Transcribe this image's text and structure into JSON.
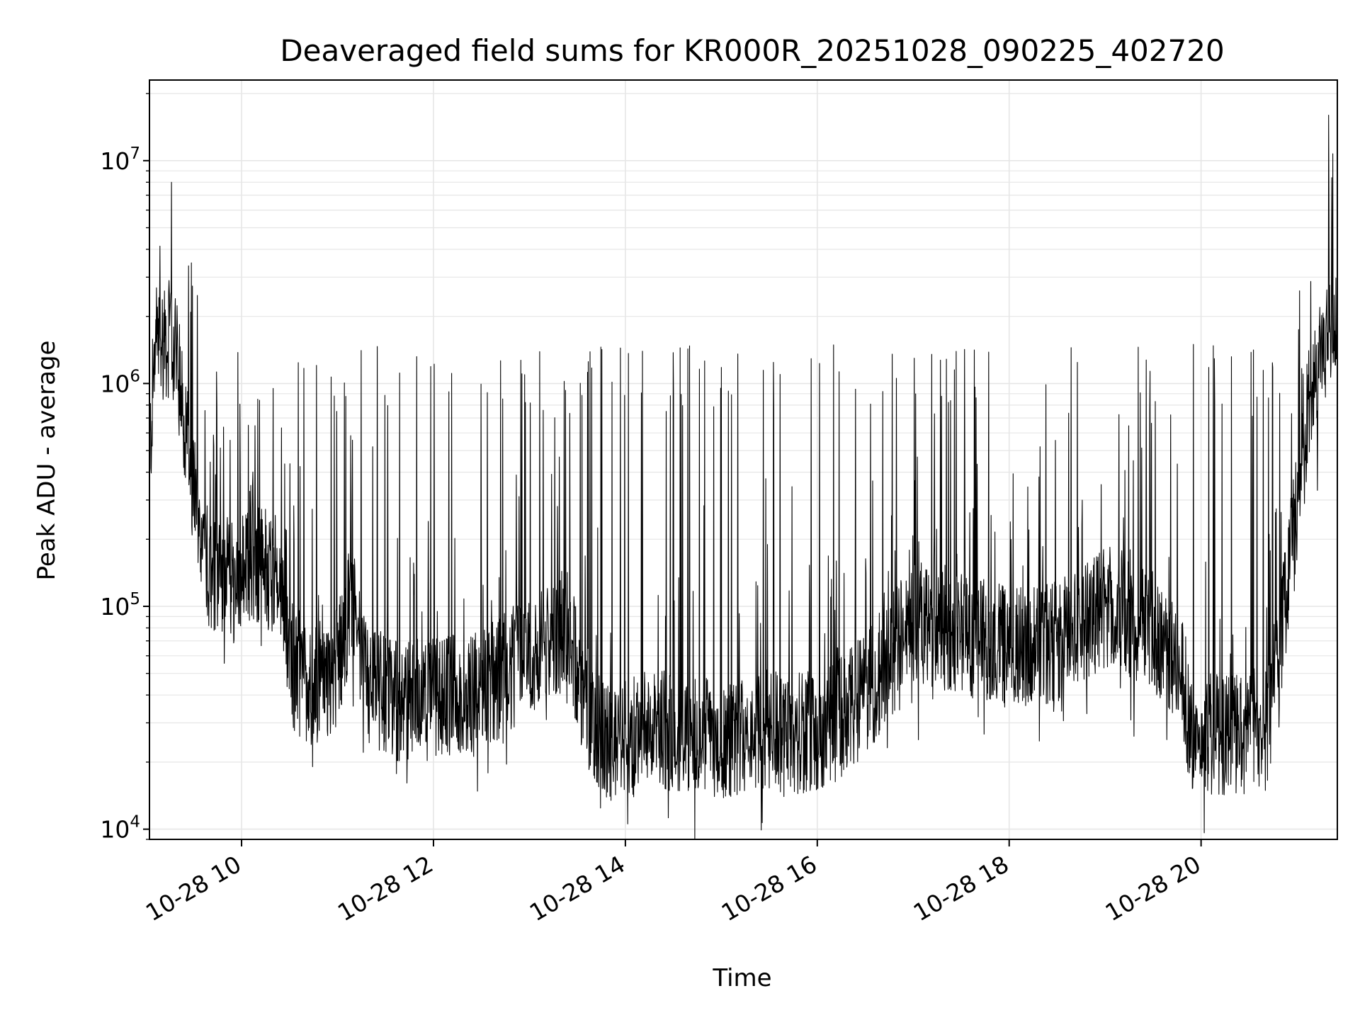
{
  "chart_data": {
    "type": "line",
    "title": "Deaveraged field sums for KR000R_20251028_090225_402720",
    "xlabel": "Time",
    "ylabel": "Peak ADU - average",
    "yscale": "log",
    "ylim": [
      9000,
      23000000
    ],
    "xlim_hours": [
      9.04,
      21.42
    ],
    "x_ticks": [
      {
        "hour": 10,
        "label": "10-28 10"
      },
      {
        "hour": 12,
        "label": "10-28 12"
      },
      {
        "hour": 14,
        "label": "10-28 14"
      },
      {
        "hour": 16,
        "label": "10-28 16"
      },
      {
        "hour": 18,
        "label": "10-28 18"
      },
      {
        "hour": 20,
        "label": "10-28 20"
      }
    ],
    "y_ticks": [
      {
        "value": 10000,
        "base": "10",
        "exp": "4"
      },
      {
        "value": 100000,
        "base": "10",
        "exp": "5"
      },
      {
        "value": 1000000,
        "base": "10",
        "exp": "6"
      },
      {
        "value": 10000000,
        "base": "10",
        "exp": "7"
      }
    ],
    "grid": true,
    "line_color": "#000000",
    "grid_color": "#e6e6e6",
    "series": [
      {
        "name": "field sums",
        "baseline_anchors_hours": [
          [
            9.04,
            450000
          ],
          [
            9.1,
            1500000
          ],
          [
            9.2,
            1600000
          ],
          [
            9.3,
            1500000
          ],
          [
            9.4,
            700000
          ],
          [
            9.5,
            300000
          ],
          [
            9.65,
            150000
          ],
          [
            9.9,
            130000
          ],
          [
            10.2,
            160000
          ],
          [
            10.4,
            130000
          ],
          [
            10.55,
            50000
          ],
          [
            10.8,
            42000
          ],
          [
            11.0,
            55000
          ],
          [
            11.15,
            110000
          ],
          [
            11.3,
            45000
          ],
          [
            11.6,
            38000
          ],
          [
            12.0,
            38000
          ],
          [
            12.5,
            42000
          ],
          [
            13.0,
            60000
          ],
          [
            13.4,
            80000
          ],
          [
            13.6,
            35000
          ],
          [
            13.8,
            25000
          ],
          [
            14.5,
            28000
          ],
          [
            15.0,
            25000
          ],
          [
            15.5,
            28000
          ],
          [
            16.0,
            26000
          ],
          [
            16.5,
            40000
          ],
          [
            17.0,
            85000
          ],
          [
            17.5,
            75000
          ],
          [
            18.0,
            65000
          ],
          [
            18.5,
            70000
          ],
          [
            19.0,
            100000
          ],
          [
            19.5,
            80000
          ],
          [
            19.8,
            50000
          ],
          [
            19.9,
            28000
          ],
          [
            20.3,
            26000
          ],
          [
            20.7,
            28000
          ],
          [
            20.8,
            60000
          ],
          [
            20.95,
            180000
          ],
          [
            21.1,
            700000
          ],
          [
            21.25,
            1500000
          ],
          [
            21.42,
            1800000
          ]
        ],
        "spike_peak_range": [
          700000,
          1500000
        ],
        "peaks": [
          {
            "hour": 9.27,
            "value": 8000000
          },
          {
            "hour": 21.33,
            "value": 16000000
          }
        ]
      }
    ]
  }
}
